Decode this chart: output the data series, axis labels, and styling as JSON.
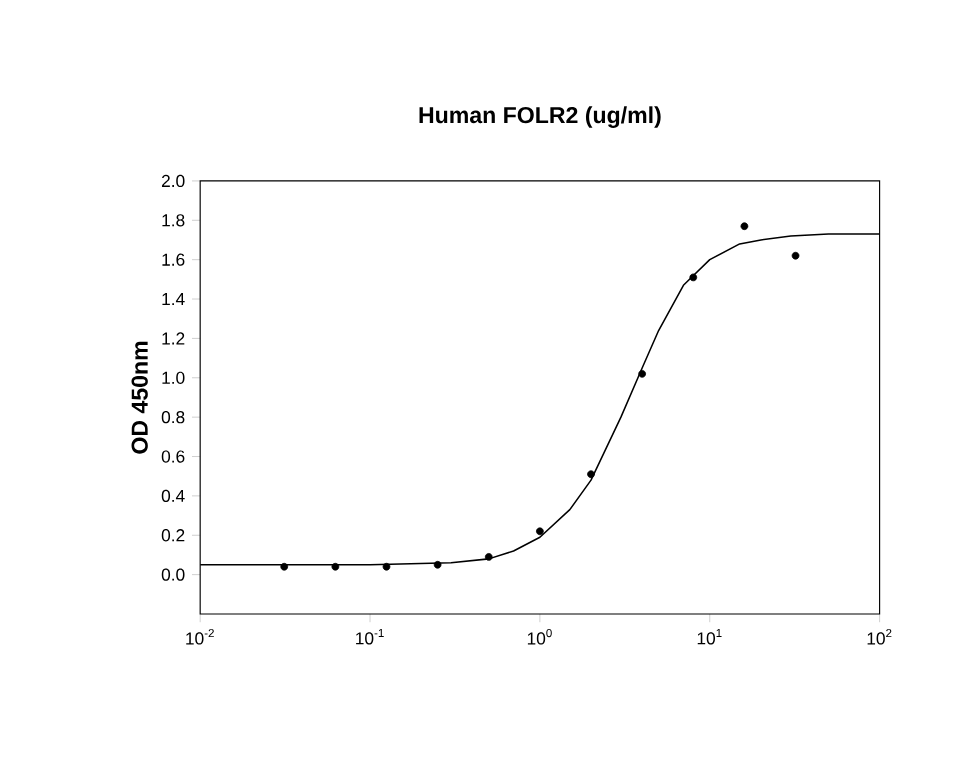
{
  "chart_data": {
    "type": "scatter",
    "title": "Human FOLR2 (ug/ml)",
    "ylabel": "OD 450nm",
    "log": "x",
    "marker": "circle",
    "xlim": [
      0.01,
      100
    ],
    "ylim": [
      -0.2,
      2.0
    ],
    "xticks": [
      {
        "value": 0.01,
        "label": "10$^{-2}$"
      },
      {
        "value": 0.1,
        "label": "10$^{-1}$"
      },
      {
        "value": 1,
        "label": "10$^{0}$"
      },
      {
        "value": 10,
        "label": "10$^{1}$"
      },
      {
        "value": 100,
        "label": "10$^{2}$"
      }
    ],
    "yticks": [
      {
        "value": 0,
        "label": "0.0"
      },
      0.2,
      0.4,
      0.6,
      0.8,
      {
        "value": 1,
        "label": "1.0"
      },
      1.2,
      1.4,
      1.6,
      1.8,
      {
        "value": 2,
        "label": "2.0"
      }
    ],
    "series": [
      {
        "color": "#000000",
        "x": [
          0.03125,
          0.0625,
          0.125,
          0.25,
          0.5,
          1,
          2,
          4,
          8,
          16,
          32
        ],
        "values": [
          0.04,
          0.04,
          0.04,
          0.05,
          0.09,
          0.22,
          0.51,
          1.02,
          1.51,
          1.77,
          1.62
        ]
      },
      {
        "type": "line",
        "color": "#000000",
        "marker": "none",
        "x": [
          0.01,
          0.1,
          0.3,
          0.5,
          0.7,
          1,
          1.5,
          2,
          3,
          4,
          5,
          7,
          10,
          15,
          20,
          30,
          50,
          100
        ],
        "values": [
          0.05,
          0.05,
          0.06,
          0.08,
          0.12,
          0.19,
          0.33,
          0.48,
          0.8,
          1.05,
          1.24,
          1.47,
          1.6,
          1.68,
          1.7,
          1.72,
          1.73,
          1.73
        ]
      }
    ]
  }
}
